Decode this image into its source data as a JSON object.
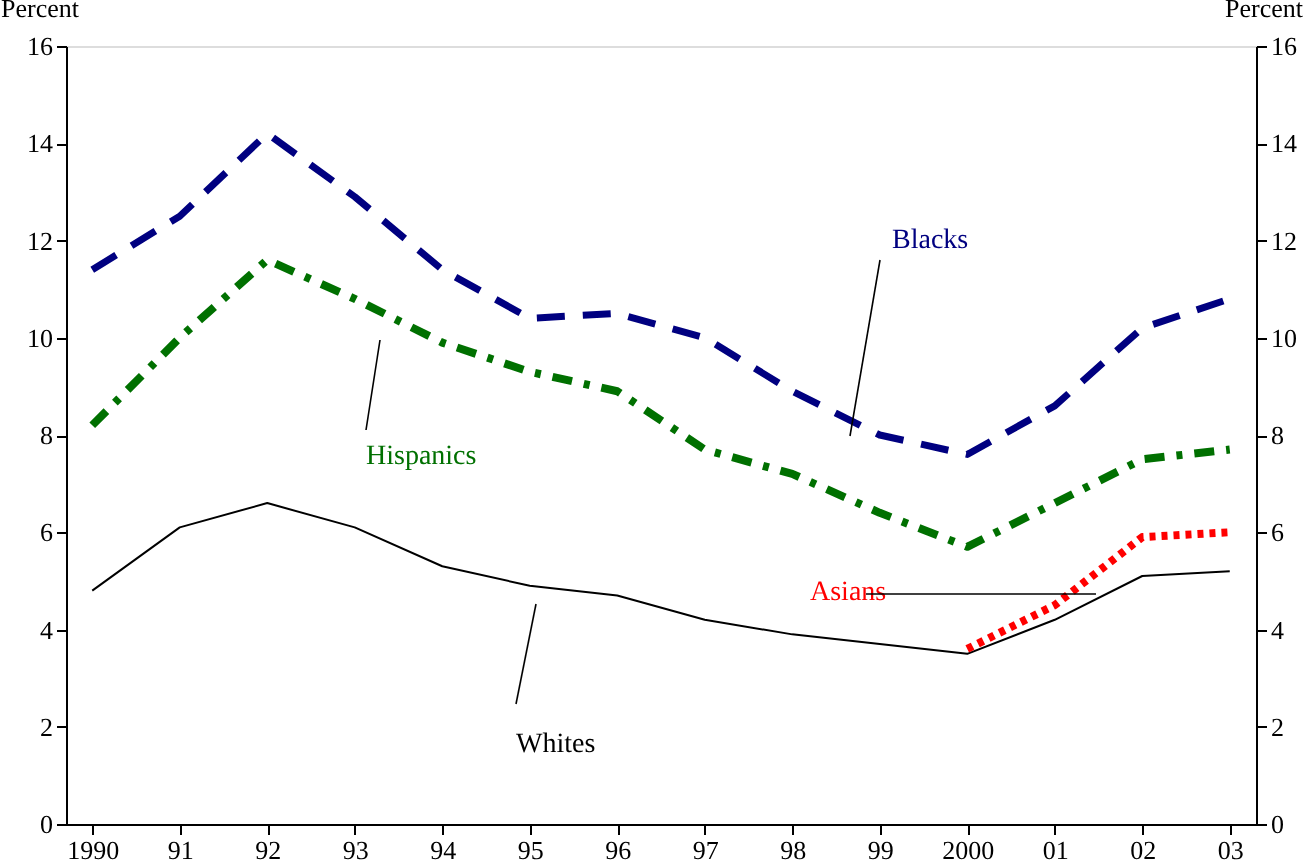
{
  "chart_data": {
    "type": "line",
    "categories": [
      "1990",
      "91",
      "92",
      "93",
      "94",
      "95",
      "96",
      "97",
      "98",
      "99",
      "2000",
      "01",
      "02",
      "03"
    ],
    "ylabel": "Percent",
    "y2label": "Percent",
    "ylim": [
      0,
      16
    ],
    "yticks": [
      0,
      2,
      4,
      6,
      8,
      10,
      12,
      14,
      16
    ],
    "y2lim": [
      0,
      16
    ],
    "y2ticks": [
      0,
      2,
      4,
      6,
      8,
      10,
      12,
      14,
      16
    ],
    "grid": false,
    "legend": false,
    "marker": "none",
    "series": [
      {
        "name": "Blacks",
        "color": "#000080",
        "line_style": "dashed",
        "values": [
          11.4,
          12.5,
          14.2,
          12.9,
          11.4,
          10.4,
          10.5,
          10.0,
          8.9,
          8.0,
          7.6,
          8.6,
          10.2,
          10.8
        ]
      },
      {
        "name": "Hispanics",
        "color": "#007000",
        "line_style": "dashdot",
        "values": [
          8.2,
          10.0,
          11.6,
          10.8,
          9.9,
          9.3,
          8.9,
          7.7,
          7.2,
          6.4,
          5.7,
          6.6,
          7.5,
          7.7
        ]
      },
      {
        "name": "Whites",
        "color": "#000000",
        "line_style": "solid",
        "values": [
          4.8,
          6.1,
          6.6,
          6.1,
          5.3,
          4.9,
          4.7,
          4.2,
          3.9,
          3.7,
          3.5,
          4.2,
          5.1,
          5.2
        ]
      },
      {
        "name": "Asians",
        "color": "#ff0000",
        "line_style": "dotted",
        "values": [
          null,
          null,
          null,
          null,
          null,
          null,
          null,
          null,
          null,
          null,
          3.6,
          4.5,
          5.9,
          6.0
        ]
      }
    ]
  }
}
